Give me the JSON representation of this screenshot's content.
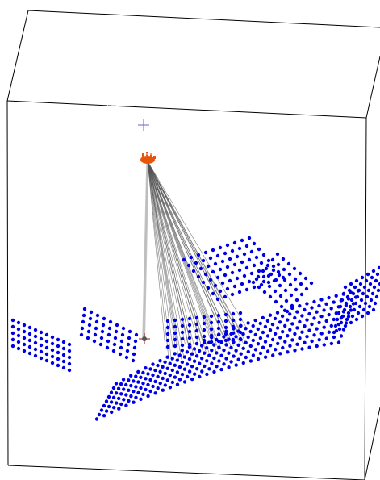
{
  "scene": {
    "colors": {
      "background": "#ffffff",
      "box_edges": "#000000",
      "points": "#0000e6",
      "camera_markers": "#e8550a",
      "camera_center_marker": "#6666cc",
      "target_marker": "#cc0000",
      "rays": "#555555",
      "vertical_rays": "#bbbbbb"
    },
    "icons": {
      "camera": "camera-cluster-icon",
      "camera_center": "crosshair-icon",
      "target": "target-crosshair-icon"
    }
  }
}
